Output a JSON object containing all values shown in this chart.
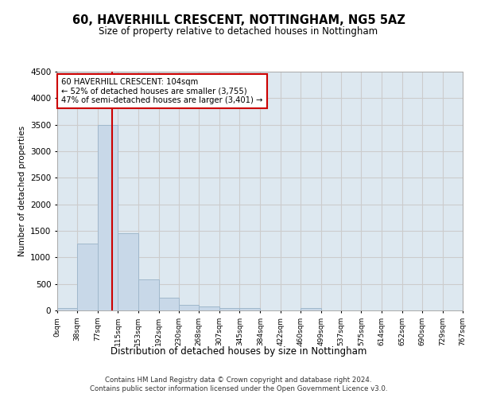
{
  "title": "60, HAVERHILL CRESCENT, NOTTINGHAM, NG5 5AZ",
  "subtitle": "Size of property relative to detached houses in Nottingham",
  "xlabel": "Distribution of detached houses by size in Nottingham",
  "ylabel": "Number of detached properties",
  "bar_color": "#c8d8e8",
  "bar_edge_color": "#a0b8cc",
  "bins": [
    0,
    38,
    77,
    115,
    153,
    192,
    230,
    268,
    307,
    345,
    384,
    422,
    460,
    499,
    537,
    575,
    614,
    652,
    690,
    729,
    767
  ],
  "bin_labels": [
    "0sqm",
    "38sqm",
    "77sqm",
    "115sqm",
    "153sqm",
    "192sqm",
    "230sqm",
    "268sqm",
    "307sqm",
    "345sqm",
    "384sqm",
    "422sqm",
    "460sqm",
    "499sqm",
    "537sqm",
    "575sqm",
    "614sqm",
    "652sqm",
    "690sqm",
    "729sqm",
    "767sqm"
  ],
  "counts": [
    40,
    1260,
    3490,
    1460,
    580,
    240,
    110,
    80,
    50,
    40,
    0,
    0,
    50,
    0,
    0,
    0,
    0,
    0,
    0,
    0
  ],
  "property_size": 104,
  "annotation_line1": "60 HAVERHILL CRESCENT: 104sqm",
  "annotation_line2": "← 52% of detached houses are smaller (3,755)",
  "annotation_line3": "47% of semi-detached houses are larger (3,401) →",
  "vline_color": "#cc0000",
  "annotation_box_color": "#ffffff",
  "annotation_box_edge": "#cc0000",
  "ylim": [
    0,
    4500
  ],
  "yticks": [
    0,
    500,
    1000,
    1500,
    2000,
    2500,
    3000,
    3500,
    4000,
    4500
  ],
  "grid_color": "#cccccc",
  "background_color": "#dde8f0",
  "footer_line1": "Contains HM Land Registry data © Crown copyright and database right 2024.",
  "footer_line2": "Contains public sector information licensed under the Open Government Licence v3.0."
}
